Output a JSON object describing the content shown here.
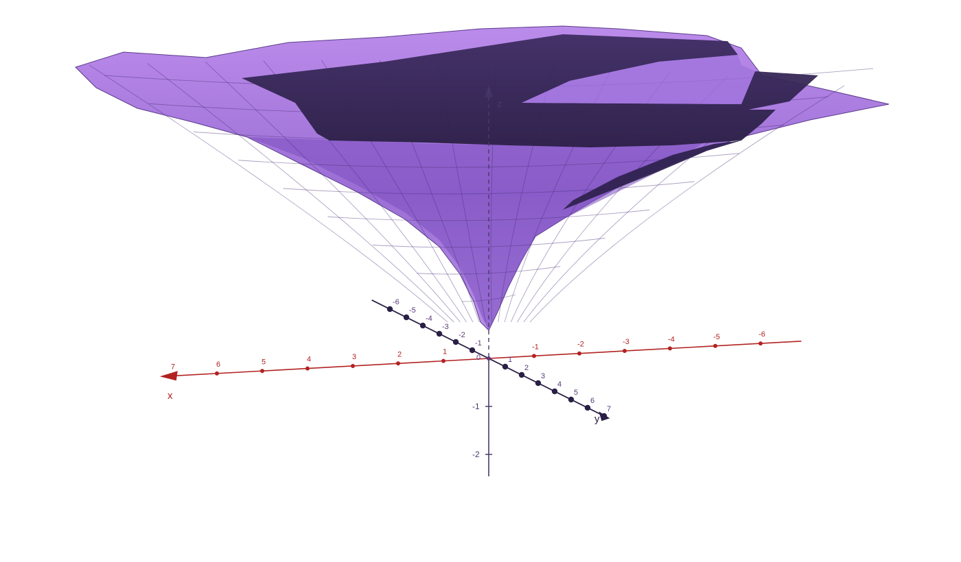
{
  "chart_data": {
    "type": "surface-3d",
    "title": "",
    "axes": {
      "x": {
        "label": "x",
        "ticks": [
          7,
          6,
          5,
          4,
          3,
          2,
          1,
          -1,
          -2,
          -3,
          -4,
          -5,
          -6
        ],
        "tick_text": [
          "7",
          "6",
          "5",
          "4",
          "3",
          "2",
          "1",
          "-1",
          "-2",
          "-3",
          "-4",
          "-5",
          "-6"
        ],
        "color": "#b22222"
      },
      "y": {
        "label": "y",
        "ticks": [
          -6,
          -5,
          -4,
          -3,
          -2,
          -1,
          1,
          2,
          3,
          4,
          5,
          6,
          7
        ],
        "tick_text": [
          "-6",
          "-5",
          "-4",
          "-3",
          "-2",
          "-1",
          "1",
          "2",
          "3",
          "4",
          "5",
          "6",
          "7"
        ],
        "color": "#2a1f45"
      },
      "z": {
        "label": "z",
        "ticks": [
          -1,
          -2
        ],
        "tick_text": [
          "-1",
          "-2"
        ],
        "color": "#4a3a6a"
      },
      "origin_label": "0"
    },
    "surfaces": [
      {
        "name": "",
        "shape": "funnel",
        "color": "#a66be0"
      },
      {
        "name": "",
        "shape": "plane-band",
        "color": "#3a2a5e"
      }
    ]
  },
  "colors": {
    "surface_light": "#b07ce6",
    "surface_mid": "#8a5ac8",
    "surface_dark": "#33244f",
    "x_axis": "#b22222",
    "y_axis": "#2a1f45",
    "z_axis": "#4a3a6a"
  }
}
